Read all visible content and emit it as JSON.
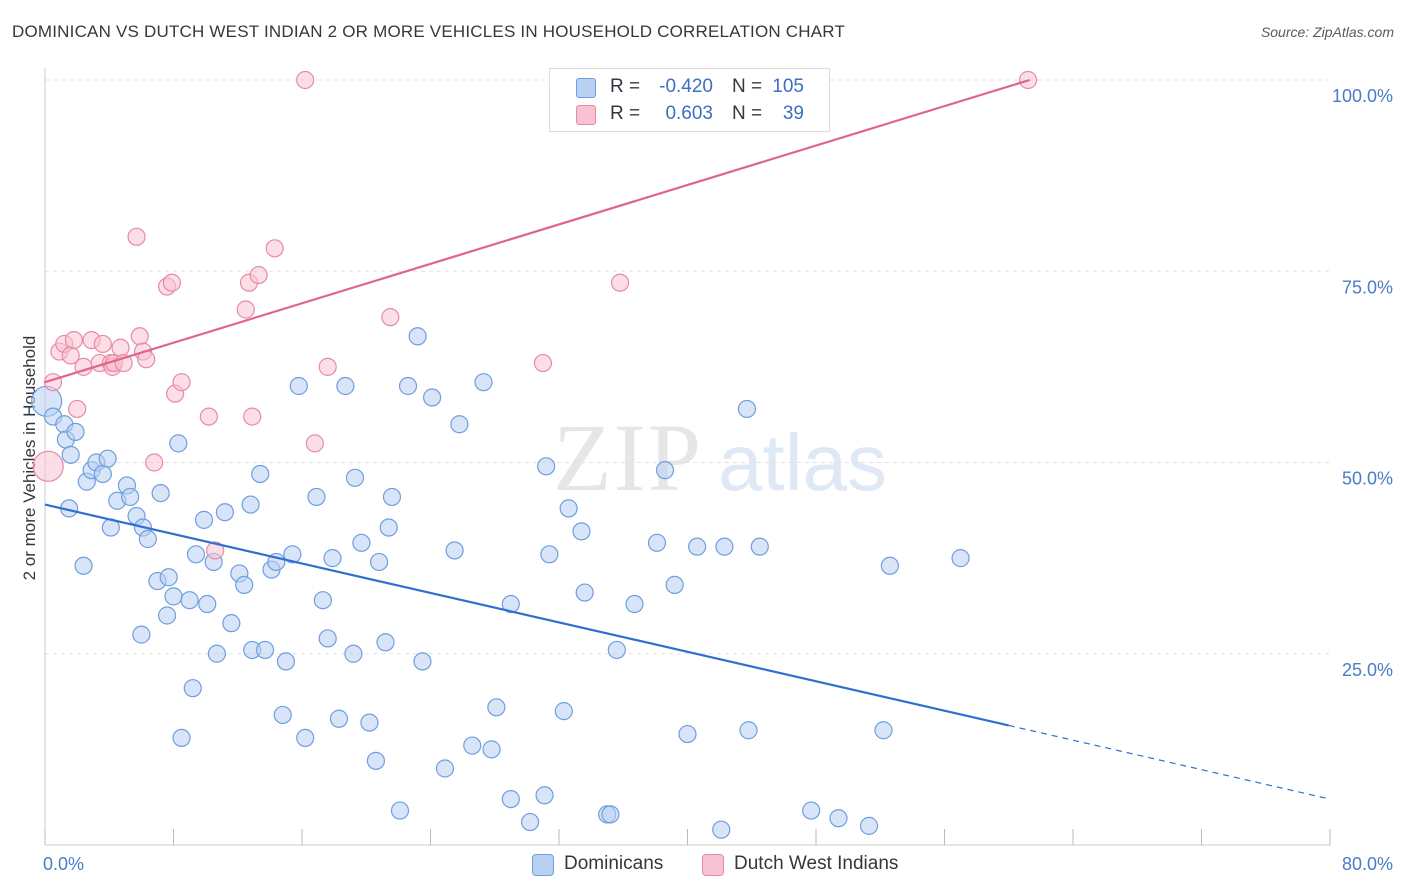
{
  "title": "DOMINICAN VS DUTCH WEST INDIAN 2 OR MORE VEHICLES IN HOUSEHOLD CORRELATION CHART",
  "source": "Source: ZipAtlas.com",
  "watermark": {
    "zip": "ZIP",
    "atlas": "atlas"
  },
  "colors": {
    "blue_fill": "#b8d0f2",
    "blue_stroke": "#6f9ede",
    "blue_line": "#2f6fd0",
    "pink_fill": "#f7c3d2",
    "pink_stroke": "#e88aa6",
    "pink_line": "#e0648c",
    "axis_text": "#4a7cc7",
    "grid": "#e2e2e2"
  },
  "legend": {
    "r_label": "R =",
    "n_label": "N =",
    "rows": [
      {
        "series": "Dominicans",
        "r": "-0.420",
        "n": "105",
        "color": "#b8d0f2",
        "border": "#6f9ede"
      },
      {
        "series": "Dutch West Indians",
        "r": "0.603",
        "n": "39",
        "color": "#f7c3d2",
        "border": "#e88aa6"
      }
    ]
  },
  "bottom_legend": [
    {
      "label": "Dominicans",
      "color": "#b8d0f2",
      "border": "#6f9ede"
    },
    {
      "label": "Dutch West Indians",
      "color": "#f7c3d2",
      "border": "#e88aa6"
    }
  ],
  "chart_data": {
    "type": "scatter",
    "title": "DOMINICAN VS DUTCH WEST INDIAN 2 OR MORE VEHICLES IN HOUSEHOLD CORRELATION CHART",
    "xlabel": "",
    "ylabel": "2 or more Vehicles in Household",
    "xlim": [
      0,
      80
    ],
    "ylim": [
      0,
      100
    ],
    "x_tick_labels": [
      "0.0%",
      "80.0%"
    ],
    "y_ticks": [
      25,
      50,
      75,
      100
    ],
    "y_tick_labels": [
      "25.0%",
      "50.0%",
      "75.0%",
      "100.0%"
    ],
    "grid": true,
    "legend_position": "top-center",
    "series": [
      {
        "name": "Dominicans",
        "color": "#b8d0f2",
        "points": [
          [
            0.1,
            58.0
          ],
          [
            0.5,
            56.0
          ],
          [
            1.2,
            55.0
          ],
          [
            1.3,
            53.0
          ],
          [
            1.6,
            51.0
          ],
          [
            1.9,
            54.0
          ],
          [
            2.6,
            47.5
          ],
          [
            2.9,
            49.0
          ],
          [
            3.2,
            50.0
          ],
          [
            3.6,
            48.5
          ],
          [
            3.9,
            50.5
          ],
          [
            4.1,
            41.5
          ],
          [
            4.5,
            45.0
          ],
          [
            5.1,
            47.0
          ],
          [
            5.3,
            45.5
          ],
          [
            5.7,
            43.0
          ],
          [
            6.1,
            41.5
          ],
          [
            6.4,
            40.0
          ],
          [
            7.2,
            46.0
          ],
          [
            8.3,
            52.5
          ],
          [
            7.0,
            34.5
          ],
          [
            7.7,
            35.0
          ],
          [
            8.0,
            32.5
          ],
          [
            9.0,
            32.0
          ],
          [
            9.4,
            38.0
          ],
          [
            9.9,
            42.5
          ],
          [
            10.1,
            31.5
          ],
          [
            10.5,
            37.0
          ],
          [
            11.2,
            43.5
          ],
          [
            10.7,
            25.0
          ],
          [
            6.0,
            27.5
          ],
          [
            8.5,
            14.0
          ],
          [
            11.6,
            29.0
          ],
          [
            12.1,
            35.5
          ],
          [
            12.4,
            34.0
          ],
          [
            12.8,
            44.5
          ],
          [
            12.9,
            25.5
          ],
          [
            13.4,
            48.5
          ],
          [
            13.7,
            25.5
          ],
          [
            14.1,
            36.0
          ],
          [
            14.4,
            37.0
          ],
          [
            15.4,
            38.0
          ],
          [
            15.0,
            24.0
          ],
          [
            14.8,
            17.0
          ],
          [
            15.8,
            60.0
          ],
          [
            16.2,
            14.0
          ],
          [
            16.9,
            45.5
          ],
          [
            17.3,
            32.0
          ],
          [
            17.6,
            27.0
          ],
          [
            17.9,
            37.5
          ],
          [
            18.3,
            16.5
          ],
          [
            18.7,
            60.0
          ],
          [
            19.2,
            25.0
          ],
          [
            19.3,
            48.0
          ],
          [
            19.7,
            39.5
          ],
          [
            20.2,
            16.0
          ],
          [
            20.8,
            37.0
          ],
          [
            20.6,
            11.0
          ],
          [
            21.2,
            26.5
          ],
          [
            21.4,
            41.5
          ],
          [
            21.6,
            45.5
          ],
          [
            22.1,
            4.5
          ],
          [
            22.6,
            60.0
          ],
          [
            23.2,
            66.5
          ],
          [
            23.5,
            24.0
          ],
          [
            24.1,
            58.5
          ],
          [
            24.9,
            10.0
          ],
          [
            25.5,
            38.5
          ],
          [
            25.8,
            55.0
          ],
          [
            26.6,
            13.0
          ],
          [
            27.3,
            60.5
          ],
          [
            27.8,
            12.5
          ],
          [
            28.1,
            18.0
          ],
          [
            29.0,
            31.5
          ],
          [
            29.0,
            6.0
          ],
          [
            30.2,
            3.0
          ],
          [
            31.1,
            6.5
          ],
          [
            31.2,
            49.5
          ],
          [
            31.4,
            38.0
          ],
          [
            32.3,
            17.5
          ],
          [
            32.6,
            44.0
          ],
          [
            33.4,
            41.0
          ],
          [
            33.6,
            33.0
          ],
          [
            35.0,
            4.0
          ],
          [
            35.2,
            4.0
          ],
          [
            35.6,
            25.5
          ],
          [
            36.7,
            31.5
          ],
          [
            38.1,
            39.5
          ],
          [
            38.6,
            49.0
          ],
          [
            39.2,
            34.0
          ],
          [
            40.0,
            14.5
          ],
          [
            40.6,
            39.0
          ],
          [
            42.1,
            2.0
          ],
          [
            42.3,
            39.0
          ],
          [
            43.7,
            57.0
          ],
          [
            43.8,
            15.0
          ],
          [
            44.5,
            39.0
          ],
          [
            47.7,
            4.5
          ],
          [
            49.4,
            3.5
          ],
          [
            51.3,
            2.5
          ],
          [
            52.2,
            15.0
          ],
          [
            52.6,
            36.5
          ],
          [
            57.0,
            37.5
          ],
          [
            1.5,
            44.0
          ],
          [
            2.4,
            36.5
          ],
          [
            7.6,
            30.0
          ],
          [
            9.2,
            20.5
          ]
        ]
      },
      {
        "name": "Dutch West Indians",
        "color": "#f7c3d2",
        "points": [
          [
            0.2,
            49.5
          ],
          [
            0.5,
            60.5
          ],
          [
            0.9,
            64.5
          ],
          [
            1.2,
            65.5
          ],
          [
            1.6,
            64.0
          ],
          [
            1.8,
            66.0
          ],
          [
            2.0,
            57.0
          ],
          [
            2.4,
            62.5
          ],
          [
            2.9,
            66.0
          ],
          [
            3.4,
            63.0
          ],
          [
            3.6,
            65.5
          ],
          [
            4.1,
            63.0
          ],
          [
            4.2,
            62.5
          ],
          [
            4.3,
            63.0
          ],
          [
            4.7,
            65.0
          ],
          [
            4.9,
            63.0
          ],
          [
            5.7,
            79.5
          ],
          [
            5.9,
            66.5
          ],
          [
            6.1,
            64.5
          ],
          [
            6.3,
            63.5
          ],
          [
            6.8,
            50.0
          ],
          [
            7.6,
            73.0
          ],
          [
            7.9,
            73.5
          ],
          [
            8.1,
            59.0
          ],
          [
            8.5,
            60.5
          ],
          [
            10.2,
            56.0
          ],
          [
            10.6,
            38.5
          ],
          [
            12.5,
            70.0
          ],
          [
            12.7,
            73.5
          ],
          [
            12.9,
            56.0
          ],
          [
            13.3,
            74.5
          ],
          [
            14.3,
            78.0
          ],
          [
            16.2,
            100.0
          ],
          [
            16.8,
            52.5
          ],
          [
            17.6,
            62.5
          ],
          [
            21.5,
            69.0
          ],
          [
            31.0,
            63.0
          ],
          [
            35.8,
            73.5
          ],
          [
            61.2,
            100.0
          ]
        ]
      }
    ],
    "trendlines": [
      {
        "name": "Dominicans",
        "x1": 0,
        "y1": 44.5,
        "x2": 80,
        "y2": 6.0,
        "solid_until_x": 60.0
      },
      {
        "name": "Dutch West Indians",
        "x1": 0,
        "y1": 60.5,
        "x2": 61.3,
        "y2": 100.0
      }
    ]
  }
}
